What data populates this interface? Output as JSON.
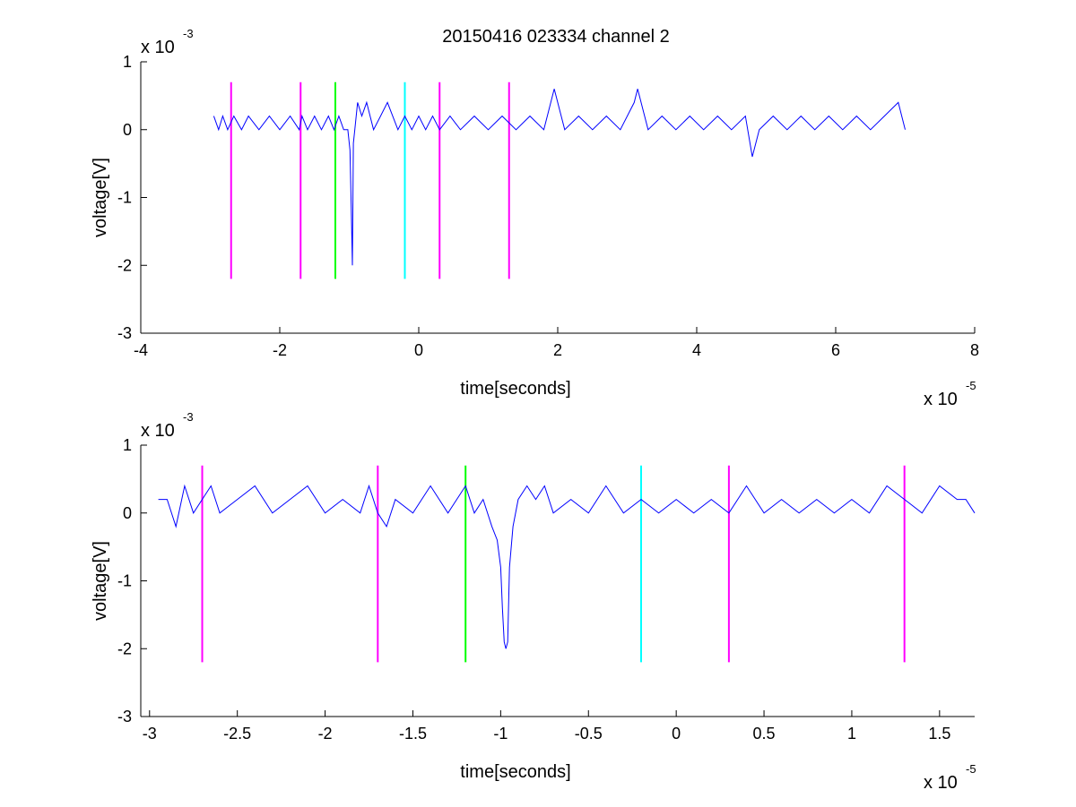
{
  "figure": {
    "title": "20150416 023334 channel 2"
  },
  "chart_data": [
    {
      "type": "line",
      "title": "20150416 023334 channel 2",
      "xlabel": "time[seconds]",
      "ylabel": "voltage[V]",
      "x_multiplier": {
        "base": "x 10",
        "exponent": "-5"
      },
      "y_multiplier": {
        "base": "x 10",
        "exponent": "-3"
      },
      "xlim": [
        -4,
        8
      ],
      "ylim": [
        -3,
        1
      ],
      "xticks": [
        -4,
        -2,
        0,
        2,
        4,
        6,
        8
      ],
      "xtick_labels": [
        "-4",
        "-2",
        "0",
        "2",
        "4",
        "6",
        "8"
      ],
      "yticks": [
        -3,
        -2,
        -1,
        0,
        1
      ],
      "ytick_labels": [
        "-3",
        "-2",
        "-1",
        "0",
        "1"
      ],
      "grid": false,
      "series": [
        {
          "color": "#0000ff",
          "x": [
            -2.95,
            -2.88,
            -2.82,
            -2.75,
            -2.66,
            -2.55,
            -2.45,
            -2.3,
            -2.15,
            -2.0,
            -1.85,
            -1.72,
            -1.68,
            -1.6,
            -1.5,
            -1.4,
            -1.3,
            -1.22,
            -1.15,
            -1.08,
            -1.02,
            -0.99,
            -0.97,
            -0.955,
            -0.94,
            -0.92,
            -0.88,
            -0.82,
            -0.75,
            -0.65,
            -0.55,
            -0.45,
            -0.3,
            -0.2,
            -0.1,
            0.0,
            0.1,
            0.2,
            0.3,
            0.45,
            0.6,
            0.8,
            1.0,
            1.2,
            1.4,
            1.6,
            1.8,
            1.95,
            2.1,
            2.3,
            2.5,
            2.7,
            2.9,
            3.1,
            3.15,
            3.3,
            3.5,
            3.7,
            3.9,
            4.1,
            4.3,
            4.5,
            4.7,
            4.8,
            4.9,
            5.1,
            5.3,
            5.5,
            5.7,
            5.9,
            6.1,
            6.3,
            6.5,
            6.7,
            6.9,
            7.0
          ],
          "y": [
            0.2,
            0.0,
            0.2,
            0.0,
            0.2,
            0.0,
            0.2,
            0.0,
            0.2,
            0.0,
            0.2,
            0.0,
            0.2,
            0.0,
            0.2,
            0.0,
            0.2,
            0.0,
            0.2,
            0.0,
            0.0,
            -0.3,
            -1.2,
            -2.0,
            -0.2,
            0.0,
            0.4,
            0.2,
            0.4,
            0.0,
            0.2,
            0.4,
            0.0,
            0.2,
            0.0,
            0.2,
            0.0,
            0.2,
            0.0,
            0.2,
            0.0,
            0.2,
            0.0,
            0.2,
            0.0,
            0.2,
            0.0,
            0.6,
            0.0,
            0.2,
            0.0,
            0.2,
            0.0,
            0.4,
            0.6,
            0.0,
            0.2,
            0.0,
            0.2,
            0.0,
            0.2,
            0.0,
            0.2,
            -0.4,
            0.0,
            0.2,
            0.0,
            0.2,
            0.0,
            0.2,
            0.0,
            0.2,
            0.0,
            0.2,
            0.4,
            0.0
          ]
        }
      ],
      "vlines": [
        {
          "x": -2.7,
          "y_from": -2.2,
          "y_to": 0.7,
          "color": "#ff00ff"
        },
        {
          "x": -1.7,
          "y_from": -2.2,
          "y_to": 0.7,
          "color": "#ff00ff"
        },
        {
          "x": -1.2,
          "y_from": -2.2,
          "y_to": 0.7,
          "color": "#00ff00"
        },
        {
          "x": -0.2,
          "y_from": -2.2,
          "y_to": 0.7,
          "color": "#00ffff"
        },
        {
          "x": 0.3,
          "y_from": -2.2,
          "y_to": 0.7,
          "color": "#ff00ff"
        },
        {
          "x": 1.3,
          "y_from": -2.2,
          "y_to": 0.7,
          "color": "#ff00ff"
        }
      ]
    },
    {
      "type": "line",
      "title": "",
      "xlabel": "time[seconds]",
      "ylabel": "voltage[V]",
      "x_multiplier": {
        "base": "x 10",
        "exponent": "-5"
      },
      "y_multiplier": {
        "base": "x 10",
        "exponent": "-3"
      },
      "xlim": [
        -3.05,
        1.7
      ],
      "ylim": [
        -3,
        1
      ],
      "xticks": [
        -3,
        -2.5,
        -2,
        -1.5,
        -1,
        -0.5,
        0,
        0.5,
        1,
        1.5
      ],
      "xtick_labels": [
        "-3",
        "-2.5",
        "-2",
        "-1.5",
        "-1",
        "-0.5",
        "0",
        "0.5",
        "1",
        "1.5"
      ],
      "yticks": [
        -3,
        -2,
        -1,
        0,
        1
      ],
      "ytick_labels": [
        "-3",
        "-2",
        "-1",
        "0",
        "1"
      ],
      "grid": false,
      "series": [
        {
          "color": "#0000ff",
          "x": [
            -2.95,
            -2.9,
            -2.85,
            -2.8,
            -2.75,
            -2.7,
            -2.65,
            -2.6,
            -2.5,
            -2.4,
            -2.3,
            -2.2,
            -2.1,
            -2.0,
            -1.9,
            -1.8,
            -1.75,
            -1.7,
            -1.65,
            -1.6,
            -1.5,
            -1.4,
            -1.3,
            -1.25,
            -1.2,
            -1.15,
            -1.1,
            -1.05,
            -1.02,
            -1.0,
            -0.99,
            -0.98,
            -0.97,
            -0.96,
            -0.95,
            -0.93,
            -0.9,
            -0.85,
            -0.8,
            -0.75,
            -0.7,
            -0.6,
            -0.5,
            -0.4,
            -0.3,
            -0.2,
            -0.1,
            0.0,
            0.1,
            0.2,
            0.3,
            0.4,
            0.5,
            0.6,
            0.7,
            0.8,
            0.9,
            1.0,
            1.1,
            1.2,
            1.3,
            1.4,
            1.5,
            1.6,
            1.65,
            1.7
          ],
          "y": [
            0.2,
            0.2,
            -0.2,
            0.4,
            0.0,
            0.2,
            0.4,
            0.0,
            0.2,
            0.4,
            0.0,
            0.2,
            0.4,
            0.0,
            0.2,
            0.0,
            0.4,
            0.0,
            -0.2,
            0.2,
            0.0,
            0.4,
            0.0,
            0.2,
            0.4,
            0.0,
            0.2,
            -0.2,
            -0.4,
            -0.8,
            -1.4,
            -1.9,
            -2.0,
            -1.9,
            -0.8,
            -0.2,
            0.2,
            0.4,
            0.2,
            0.4,
            0.0,
            0.2,
            0.0,
            0.4,
            0.0,
            0.2,
            0.0,
            0.2,
            0.0,
            0.2,
            0.0,
            0.4,
            0.0,
            0.2,
            0.0,
            0.2,
            0.0,
            0.2,
            0.0,
            0.4,
            0.2,
            0.0,
            0.4,
            0.2,
            0.2,
            0.0
          ]
        }
      ],
      "vlines": [
        {
          "x": -2.7,
          "y_from": -2.2,
          "y_to": 0.7,
          "color": "#ff00ff"
        },
        {
          "x": -1.7,
          "y_from": -2.2,
          "y_to": 0.7,
          "color": "#ff00ff"
        },
        {
          "x": -1.2,
          "y_from": -2.2,
          "y_to": 0.7,
          "color": "#00ff00"
        },
        {
          "x": -0.2,
          "y_from": -2.2,
          "y_to": 0.7,
          "color": "#00ffff"
        },
        {
          "x": 0.3,
          "y_from": -2.2,
          "y_to": 0.7,
          "color": "#ff00ff"
        },
        {
          "x": 1.3,
          "y_from": -2.2,
          "y_to": 0.7,
          "color": "#ff00ff"
        }
      ]
    }
  ]
}
